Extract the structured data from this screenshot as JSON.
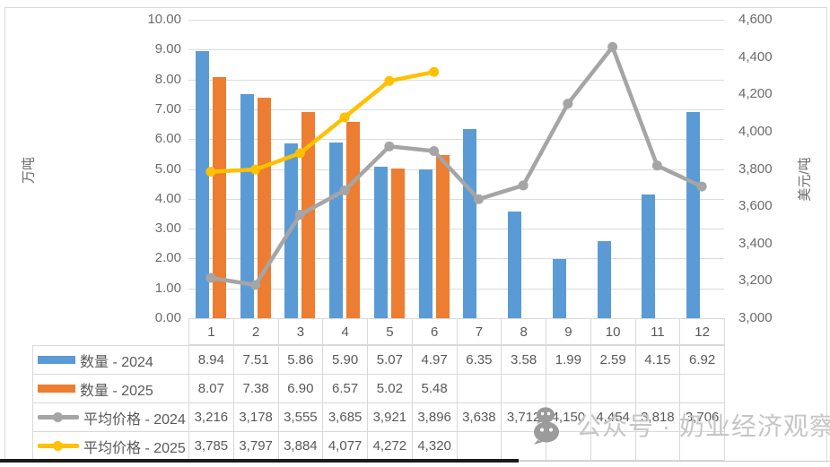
{
  "chart_data": {
    "type": "bar",
    "subtype": "bar-line-combo",
    "categories": [
      "1",
      "2",
      "3",
      "4",
      "5",
      "6",
      "7",
      "8",
      "9",
      "10",
      "11",
      "12"
    ],
    "series": [
      {
        "name": "数量 - 2024",
        "type": "bar",
        "axis": "left",
        "color": "#5B9BD5",
        "values": [
          8.94,
          7.51,
          5.86,
          5.9,
          5.07,
          4.97,
          6.35,
          3.58,
          1.99,
          2.59,
          4.15,
          6.92
        ]
      },
      {
        "name": "数量 - 2025",
        "type": "bar",
        "axis": "left",
        "color": "#ED7D31",
        "values": [
          8.07,
          7.38,
          6.9,
          6.57,
          5.02,
          5.48
        ]
      },
      {
        "name": "平均价格 - 2024",
        "type": "line",
        "axis": "right",
        "color": "#A5A5A5",
        "values": [
          3216,
          3178,
          3555,
          3685,
          3921,
          3896,
          3638,
          3712,
          4150,
          4454,
          3818,
          3706
        ]
      },
      {
        "name": "平均价格 - 2025",
        "type": "line",
        "axis": "right",
        "color": "#FFC000",
        "values": [
          3785,
          3797,
          3884,
          4077,
          4272,
          4320
        ]
      }
    ],
    "left_axis": {
      "title": "万吨",
      "min": 0,
      "max": 10,
      "step": 1,
      "tick_labels": [
        "10.00",
        "9.00",
        "8.00",
        "7.00",
        "6.00",
        "5.00",
        "4.00",
        "3.00",
        "2.00",
        "1.00",
        "0.00"
      ]
    },
    "right_axis": {
      "title": "美元/吨",
      "min": 3000,
      "max": 4600,
      "step": 200,
      "tick_labels": [
        "4,600",
        "4,400",
        "4,200",
        "4,000",
        "3,800",
        "3,600",
        "3,400",
        "3,200",
        "3,000"
      ]
    },
    "grid": true,
    "legend_position": "table-left"
  },
  "table": {
    "header": [
      "1",
      "2",
      "3",
      "4",
      "5",
      "6",
      "7",
      "8",
      "9",
      "10",
      "11",
      "12"
    ],
    "rows": [
      {
        "label": "数量 - 2024",
        "key": "bar",
        "color": "#5B9BD5",
        "values": [
          "8.94",
          "7.51",
          "5.86",
          "5.90",
          "5.07",
          "4.97",
          "6.35",
          "3.58",
          "1.99",
          "2.59",
          "4.15",
          "6.92"
        ]
      },
      {
        "label": "数量 - 2025",
        "key": "bar",
        "color": "#ED7D31",
        "values": [
          "8.07",
          "7.38",
          "6.90",
          "6.57",
          "5.02",
          "5.48",
          "",
          "",
          "",
          "",
          "",
          ""
        ]
      },
      {
        "label": "平均价格 - 2024",
        "key": "line",
        "color": "#A5A5A5",
        "values": [
          "3,216",
          "3,178",
          "3,555",
          "3,685",
          "3,921",
          "3,896",
          "3,638",
          "3,712",
          "4,150",
          "4,454",
          "3,818",
          "3,706"
        ]
      },
      {
        "label": "平均价格 - 2025",
        "key": "line",
        "color": "#FFC000",
        "values": [
          "3,785",
          "3,797",
          "3,884",
          "4,077",
          "4,272",
          "4,320",
          "",
          "",
          "",
          "",
          "",
          ""
        ]
      }
    ]
  },
  "watermark": {
    "text": "公众号 · 奶业经济观察",
    "icon": "wechat-icon"
  },
  "colors": {
    "bar_2024": "#5B9BD5",
    "bar_2025": "#ED7D31",
    "line_2024": "#A5A5A5",
    "line_2025": "#FFC000",
    "grid": "#dcdcdc",
    "text": "#595959",
    "watermark": "#c6c6c6"
  }
}
